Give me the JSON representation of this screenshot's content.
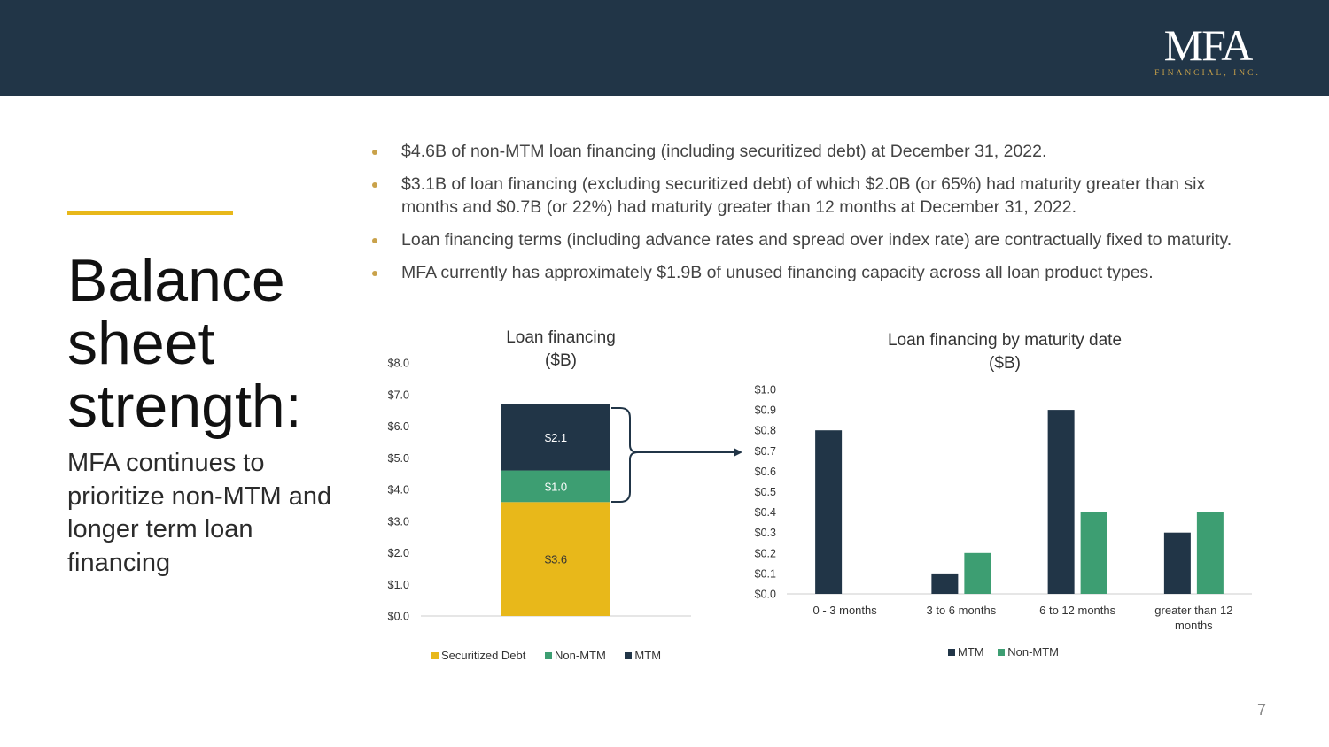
{
  "colors": {
    "header": "#213547",
    "accent": "#e8b81a",
    "gold": "#c9a24a",
    "mtm": "#213547",
    "non_mtm": "#3d9e72",
    "securitized": "#e8b81a"
  },
  "logo": {
    "main": "MFA",
    "sub": "FINANCIAL, INC."
  },
  "title": {
    "line1": "Balance",
    "line2": "sheet",
    "line3": "strength:"
  },
  "subtitle": "MFA continues to prioritize non-MTM and longer term loan financing",
  "bullets": [
    "$4.6B of non-MTM loan financing (including securitized debt) at December 31, 2022.",
    "$3.1B of loan financing (excluding securitized debt) of which $2.0B (or 65%) had maturity greater than six months and $0.7B (or 22%) had maturity greater than 12 months at December 31, 2022.",
    "Loan financing terms (including advance rates and spread over index rate) are contractually fixed to maturity.",
    "MFA currently has approximately $1.9B of unused financing capacity across all loan product types."
  ],
  "page_number": "7",
  "chart_data": [
    {
      "type": "bar",
      "stacked": true,
      "title": "Loan financing",
      "subtitle": "($B)",
      "categories": [
        ""
      ],
      "ylim": [
        0,
        8
      ],
      "y_ticks": [
        "$0.0",
        "$1.0",
        "$2.0",
        "$3.0",
        "$4.0",
        "$5.0",
        "$6.0",
        "$7.0",
        "$8.0"
      ],
      "series": [
        {
          "name": "Securitized Debt",
          "values": [
            3.6
          ],
          "label": "$3.6"
        },
        {
          "name": "Non-MTM",
          "values": [
            1.0
          ],
          "label": "$1.0"
        },
        {
          "name": "MTM",
          "values": [
            2.1
          ],
          "label": "$2.1"
        }
      ],
      "legend_position": "bottom"
    },
    {
      "type": "bar",
      "title": "Loan financing by maturity date",
      "subtitle": "($B)",
      "categories": [
        "0 - 3 months",
        "3 to 6 months",
        "6 to 12 months",
        "greater than 12 months"
      ],
      "ylim": [
        0,
        1.0
      ],
      "y_ticks": [
        "$0.0",
        "$0.1",
        "$0.2",
        "$0.3",
        "$0.4",
        "$0.5",
        "$0.6",
        "$0.7",
        "$0.8",
        "$0.9",
        "$1.0"
      ],
      "series": [
        {
          "name": "MTM",
          "values": [
            0.8,
            0.1,
            0.9,
            0.3
          ]
        },
        {
          "name": "Non-MTM",
          "values": [
            0.0,
            0.2,
            0.4,
            0.4
          ]
        }
      ],
      "legend_position": "bottom"
    }
  ]
}
